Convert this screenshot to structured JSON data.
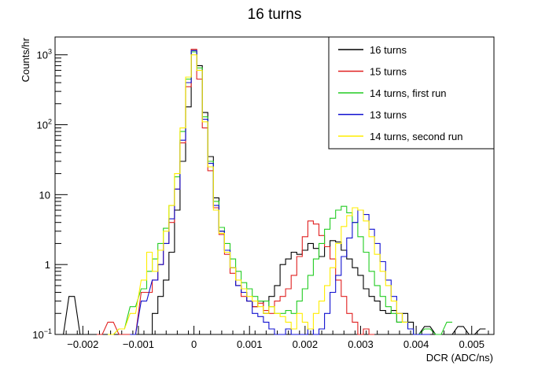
{
  "chart_data": {
    "type": "line",
    "title": "16 turns",
    "xlabel": "DCR (ADC/ns)",
    "ylabel": "Counts/hr",
    "xlim": [
      -0.0025,
      0.0054
    ],
    "ylim": [
      0.1,
      1800
    ],
    "y_scale": "log",
    "grid": false,
    "legend_position": "top-right",
    "x_ticks": [
      {
        "value": -0.002,
        "label": "−0.002"
      },
      {
        "value": -0.001,
        "label": "−0.001"
      },
      {
        "value": 0,
        "label": "0"
      },
      {
        "value": 0.001,
        "label": "0.001"
      },
      {
        "value": 0.002,
        "label": "0.002"
      },
      {
        "value": 0.003,
        "label": "0.003"
      },
      {
        "value": 0.004,
        "label": "0.004"
      },
      {
        "value": 0.005,
        "label": "0.005"
      }
    ],
    "y_ticks": [
      {
        "value": 0.1,
        "base": "10",
        "exp": "−1",
        "label": ""
      },
      {
        "value": 1,
        "base": "",
        "exp": "",
        "label": "1"
      },
      {
        "value": 10,
        "base": "",
        "exp": "",
        "label": "10"
      },
      {
        "value": 100,
        "base": "10",
        "exp": "2",
        "label": ""
      },
      {
        "value": 1000,
        "base": "10",
        "exp": "3",
        "label": ""
      }
    ],
    "series": [
      {
        "name": "16 turns",
        "color": "#000000",
        "x": [
          -0.0024,
          -0.0022,
          -0.002,
          -0.0018,
          -0.0016,
          -0.0014,
          -0.0012,
          -0.001,
          -0.0009,
          -0.0008,
          -0.0007,
          -0.0006,
          -0.0005,
          -0.0004,
          -0.0003,
          -0.0002,
          -0.0001,
          0,
          0.0001,
          0.0002,
          0.0003,
          0.0004,
          0.0005,
          0.0006,
          0.0007,
          0.0008,
          0.0009,
          0.001,
          0.0011,
          0.0012,
          0.0013,
          0.0014,
          0.0015,
          0.0016,
          0.0017,
          0.0018,
          0.0019,
          0.002,
          0.0021,
          0.0022,
          0.0023,
          0.0024,
          0.0025,
          0.0026,
          0.0027,
          0.0028,
          0.0029,
          0.003,
          0.0031,
          0.0032,
          0.0033,
          0.0034,
          0.0035,
          0.0036,
          0.0037,
          0.0038,
          0.0039,
          0.004,
          0.0042,
          0.0044,
          0.0046,
          0.0048,
          0.005,
          0.0052
        ],
        "y": [
          0.1,
          0.35,
          0.1,
          0.1,
          0.1,
          0.1,
          0.1,
          0.1,
          0.1,
          0.1,
          0.2,
          0.35,
          0.6,
          1.5,
          6,
          30,
          180,
          1150,
          700,
          150,
          35,
          9,
          3,
          1.6,
          0.9,
          0.5,
          0.4,
          0.3,
          0.25,
          0.3,
          0.2,
          0.35,
          0.5,
          1.0,
          1.2,
          1.5,
          1.4,
          1.6,
          2.0,
          1.7,
          1.3,
          1.8,
          2.2,
          2.1,
          1.6,
          1.2,
          0.9,
          0.7,
          0.45,
          0.35,
          0.3,
          0.22,
          0.2,
          0.22,
          0.15,
          0.2,
          0.15,
          0.1,
          0.13,
          0.1,
          0.1,
          0.13,
          0.1,
          0.12
        ]
      },
      {
        "name": "15 turns",
        "color": "#e02020",
        "x": [
          -0.0017,
          -0.0015,
          -0.0013,
          -0.0011,
          -0.0009,
          -0.0008,
          -0.0007,
          -0.0006,
          -0.0005,
          -0.0004,
          -0.0003,
          -0.0002,
          -0.0001,
          0,
          0.0001,
          0.0002,
          0.0003,
          0.0004,
          0.0005,
          0.0006,
          0.0007,
          0.0008,
          0.0009,
          0.001,
          0.0011,
          0.0012,
          0.0013,
          0.0014,
          0.0015,
          0.0016,
          0.0017,
          0.0018,
          0.0019,
          0.002,
          0.0021,
          0.0022,
          0.0023,
          0.0024,
          0.0025,
          0.0026,
          0.0027,
          0.0028,
          0.0029,
          0.003,
          0.0031,
          0.0032
        ],
        "y": [
          0.1,
          0.15,
          0.1,
          0.1,
          0.4,
          0.4,
          0.6,
          1.0,
          2.0,
          4.0,
          12,
          55,
          350,
          1200,
          450,
          90,
          22,
          6.5,
          2.7,
          1.4,
          0.75,
          0.5,
          0.35,
          0.3,
          0.25,
          0.28,
          0.22,
          0.2,
          0.3,
          0.35,
          0.45,
          0.7,
          1.3,
          2.5,
          4.2,
          3.8,
          2.6,
          1.8,
          1.2,
          0.6,
          0.35,
          0.2,
          0.15,
          0.1,
          0.12,
          0.1
        ]
      },
      {
        "name": "14 turns, first run",
        "color": "#22cc22",
        "x": [
          -0.0015,
          -0.0013,
          -0.0011,
          -0.0009,
          -0.0008,
          -0.0007,
          -0.0006,
          -0.0005,
          -0.0004,
          -0.0003,
          -0.0002,
          -0.0001,
          0,
          0.0001,
          0.0002,
          0.0003,
          0.0004,
          0.0005,
          0.0006,
          0.0007,
          0.0008,
          0.0009,
          0.001,
          0.0011,
          0.0012,
          0.0013,
          0.0014,
          0.0015,
          0.0016,
          0.0017,
          0.0018,
          0.0019,
          0.002,
          0.0021,
          0.0022,
          0.0023,
          0.0024,
          0.0025,
          0.0026,
          0.0027,
          0.0028,
          0.0029,
          0.003,
          0.0031,
          0.0032,
          0.0033,
          0.0034,
          0.0035,
          0.0036,
          0.0037,
          0.0038,
          0.0039,
          0.004,
          0.0042,
          0.0044,
          0.0046
        ],
        "y": [
          0.1,
          0.12,
          0.25,
          0.45,
          0.8,
          1.2,
          2.0,
          3.3,
          7,
          18,
          80,
          450,
          1100,
          650,
          130,
          30,
          8,
          3.4,
          2.0,
          1.2,
          0.8,
          0.55,
          0.45,
          0.35,
          0.3,
          0.3,
          0.25,
          0.2,
          0.2,
          0.22,
          0.2,
          0.3,
          0.45,
          0.7,
          1.2,
          2.0,
          3.2,
          4.6,
          6.0,
          6.8,
          5.5,
          4.0,
          2.5,
          1.5,
          0.8,
          0.5,
          0.35,
          0.25,
          0.2,
          0.15,
          0.15,
          0.12,
          0.1,
          0.12,
          0.1,
          0.15
        ]
      },
      {
        "name": "13 turns",
        "color": "#1010d0",
        "x": [
          -0.0011,
          -0.0009,
          -0.0007,
          -0.0006,
          -0.0005,
          -0.0004,
          -0.0003,
          -0.0002,
          -0.0001,
          0,
          0.0001,
          0.0002,
          0.0003,
          0.0004,
          0.0005,
          0.0006,
          0.0007,
          0.0008,
          0.0009,
          0.001,
          0.0011,
          0.0012,
          0.0013,
          0.0014,
          0.0015,
          0.0016,
          0.0017,
          0.0018,
          0.0019,
          0.002,
          0.0021,
          0.0022,
          0.0023,
          0.0024,
          0.0025,
          0.0026,
          0.0027,
          0.0028,
          0.0029,
          0.003,
          0.0031,
          0.0032,
          0.0033,
          0.0034,
          0.0035,
          0.0036,
          0.0037,
          0.0038,
          0.0039,
          0.004,
          0.0042
        ],
        "y": [
          0.1,
          0.3,
          0.6,
          1.0,
          2.0,
          4.5,
          12,
          60,
          400,
          1150,
          600,
          120,
          28,
          7,
          3.0,
          1.6,
          0.9,
          0.5,
          0.4,
          0.3,
          0.2,
          0.18,
          0.15,
          0.12,
          0.1,
          0.1,
          0.12,
          0.1,
          0.1,
          0.1,
          0.12,
          0.1,
          0.12,
          0.2,
          0.4,
          0.7,
          1.3,
          2.4,
          4.0,
          6.0,
          5.2,
          3.2,
          2.0,
          1.1,
          0.6,
          0.35,
          0.2,
          0.15,
          0.12,
          0.1,
          0.1
        ]
      },
      {
        "name": "14 turns, second run",
        "color": "#ffee00",
        "x": [
          -0.0015,
          -0.0013,
          -0.0011,
          -0.0009,
          -0.0008,
          -0.0007,
          -0.0006,
          -0.0005,
          -0.0004,
          -0.0003,
          -0.0002,
          -0.0001,
          0,
          0.0001,
          0.0002,
          0.0003,
          0.0004,
          0.0005,
          0.0006,
          0.0007,
          0.0008,
          0.0009,
          0.001,
          0.0011,
          0.0012,
          0.0013,
          0.0014,
          0.0015,
          0.0016,
          0.0017,
          0.0018,
          0.0019,
          0.002,
          0.0021,
          0.0022,
          0.0023,
          0.0024,
          0.0025,
          0.0026,
          0.0027,
          0.0028,
          0.0029,
          0.003,
          0.0031,
          0.0032,
          0.0033,
          0.0034,
          0.0035,
          0.0036,
          0.0037,
          0.0038
        ],
        "y": [
          0.1,
          0.12,
          0.2,
          0.6,
          1.5,
          0.8,
          1.6,
          3.0,
          7,
          20,
          90,
          480,
          1000,
          600,
          110,
          25,
          6,
          2.8,
          1.5,
          0.9,
          0.6,
          0.45,
          0.35,
          0.3,
          0.25,
          0.2,
          0.25,
          0.2,
          0.18,
          0.15,
          0.12,
          0.2,
          0.15,
          0.12,
          0.2,
          0.3,
          0.5,
          0.9,
          2.0,
          3.5,
          5.0,
          6.5,
          6.0,
          4.2,
          2.5,
          1.4,
          0.8,
          0.5,
          0.3,
          0.2,
          0.15
        ]
      }
    ]
  }
}
